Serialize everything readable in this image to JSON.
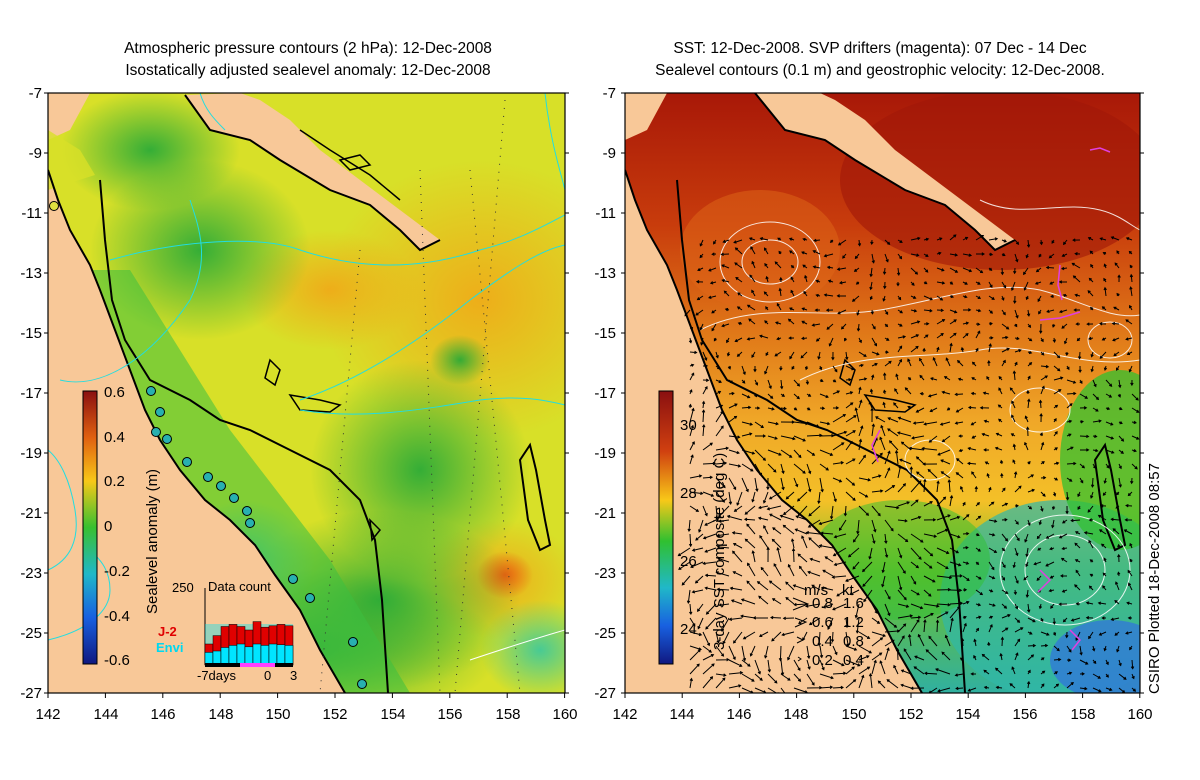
{
  "left_panel": {
    "title_line1": "Atmospheric pressure contours (2 hPa): 12-Dec-2008",
    "title_line2": "Isostatically adjusted sealevel anomaly: 12-Dec-2008",
    "colorbar_label": "Sealevel anomaly (m)",
    "colorbar_ticks": [
      "0.6",
      "0.4",
      "0.2",
      "0",
      "-0.2",
      "-0.4",
      "-0.6"
    ],
    "inset": {
      "title": "Data count",
      "ymax_label": "250",
      "series": [
        {
          "name": "J-2",
          "color": "#e00000"
        },
        {
          "name": "Envi",
          "color": "#00e5ff"
        }
      ],
      "x_labels": [
        "-7days",
        "0",
        "3"
      ]
    }
  },
  "right_panel": {
    "title_line1": "SST: 12-Dec-2008. SVP drifters (magenta): 07 Dec - 14 Dec",
    "title_line2": "Sealevel contours (0.1 m) and geostrophic velocity: 12-Dec-2008.",
    "colorbar_label": "3-day SST composite (deg C)",
    "colorbar_ticks": [
      "30",
      "28",
      "26",
      "24"
    ],
    "velocity_legend": {
      "header_ms": "m/s",
      "header_kt": "kt",
      "rows": [
        {
          "ms": "0.8",
          "kt": "1.6"
        },
        {
          "ms": "0.6",
          "kt": "1.2"
        },
        {
          "ms": "0.4",
          "kt": "0.8"
        },
        {
          "ms": "0.2",
          "kt": "0.4"
        }
      ]
    }
  },
  "y_ticks": [
    "-7",
    "-9",
    "-11",
    "-13",
    "-15",
    "-17",
    "-19",
    "-21",
    "-23",
    "-25",
    "-27"
  ],
  "x_ticks": [
    "142",
    "144",
    "146",
    "148",
    "150",
    "152",
    "154",
    "156",
    "158",
    "160"
  ],
  "credit": "CSIRO Plotted 18-Dec-2008 08:57",
  "colors": {
    "land": "#f8c898",
    "warm_sst": "#a81c08",
    "mid_sst": "#e88818",
    "cool_sst": "#22b828",
    "sla_green": "#3cc040",
    "sla_yellow": "#d8e020",
    "sla_orange": "#f0b418"
  }
}
